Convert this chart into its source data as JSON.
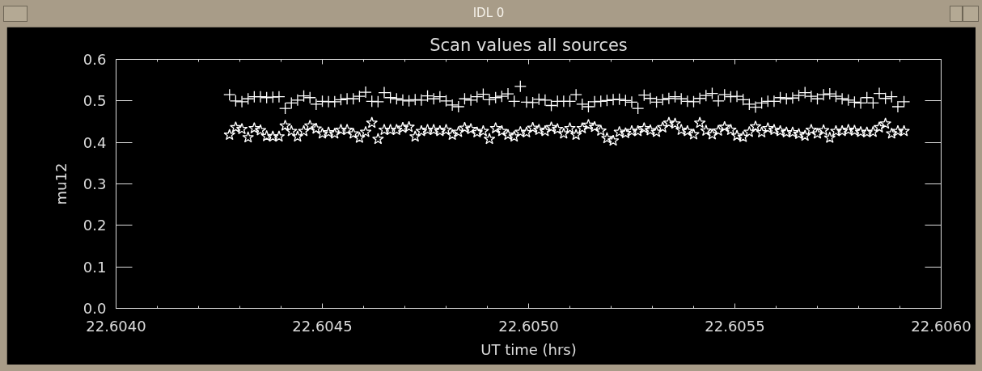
{
  "chart_data": {
    "type": "scatter",
    "title": "Scan values all sources",
    "xlabel": "UT time (hrs)",
    "ylabel": "mu12",
    "annotations": [
      "IDL 0"
    ],
    "xlim": [
      22.604,
      22.606
    ],
    "ylim": [
      0,
      0.6
    ],
    "xticks": [
      {
        "value": 22.604,
        "label": "22.6040"
      },
      22.6045,
      {
        "value": 22.605,
        "label": "22.6050"
      },
      22.6055,
      {
        "value": 22.606,
        "label": "22.6060"
      }
    ],
    "yticks": [
      {
        "value": 0,
        "label": "0.0"
      },
      0.1,
      0.2,
      0.3,
      0.4,
      0.5,
      0.6
    ],
    "x": [
      22.604275,
      22.60429,
      22.604305,
      22.60432,
      22.604335,
      22.60435,
      22.604365,
      22.60438,
      22.604395,
      22.60441,
      22.604425,
      22.60444,
      22.604455,
      22.60447,
      22.604485,
      22.6045,
      22.604515,
      22.60453,
      22.604545,
      22.60456,
      22.604575,
      22.60459,
      22.604605,
      22.60462,
      22.604635,
      22.60465,
      22.604665,
      22.60468,
      22.604695,
      22.60471,
      22.604725,
      22.60474,
      22.604755,
      22.60477,
      22.604785,
      22.6048,
      22.604815,
      22.60483,
      22.604845,
      22.60486,
      22.604875,
      22.60489,
      22.604905,
      22.60492,
      22.604935,
      22.60495,
      22.604965,
      22.60498,
      22.604995,
      22.60501,
      22.605025,
      22.60504,
      22.605055,
      22.60507,
      22.605085,
      22.6051,
      22.605115,
      22.60513,
      22.605145,
      22.60516,
      22.605175,
      22.60519,
      22.605205,
      22.60522,
      22.605235,
      22.60525,
      22.605265,
      22.60528,
      22.605295,
      22.60531,
      22.605325,
      22.60534,
      22.605355,
      22.60537,
      22.605385,
      22.6054,
      22.605415,
      22.60543,
      22.605445,
      22.60546,
      22.605475,
      22.60549,
      22.605505,
      22.60552,
      22.605535,
      22.60555,
      22.605565,
      22.60558,
      22.605595,
      22.60561,
      22.605625,
      22.60564,
      22.605655,
      22.60567,
      22.605685,
      22.6057,
      22.605715,
      22.60573,
      22.605745,
      22.60576,
      22.605775,
      22.60579,
      22.605805,
      22.60582,
      22.605835,
      22.60585,
      22.605865,
      22.60588,
      22.605895,
      22.60591
    ],
    "series": [
      {
        "color": "#ffffff",
        "marker": "cross",
        "values": [
          0.515,
          0.5,
          0.498,
          0.505,
          0.51,
          0.51,
          0.508,
          0.509,
          0.51,
          0.482,
          0.495,
          0.502,
          0.512,
          0.508,
          0.492,
          0.499,
          0.498,
          0.498,
          0.503,
          0.505,
          0.505,
          0.511,
          0.521,
          0.499,
          0.498,
          0.52,
          0.508,
          0.505,
          0.502,
          0.5,
          0.503,
          0.502,
          0.512,
          0.505,
          0.51,
          0.5,
          0.49,
          0.486,
          0.505,
          0.502,
          0.51,
          0.516,
          0.503,
          0.508,
          0.511,
          0.517,
          0.499,
          0.535,
          0.497,
          0.496,
          0.504,
          0.502,
          0.489,
          0.499,
          0.499,
          0.499,
          0.515,
          0.492,
          0.486,
          0.498,
          0.499,
          0.501,
          0.503,
          0.504,
          0.501,
          0.497,
          0.482,
          0.514,
          0.506,
          0.497,
          0.503,
          0.506,
          0.51,
          0.505,
          0.499,
          0.498,
          0.506,
          0.513,
          0.518,
          0.5,
          0.515,
          0.51,
          0.511,
          0.503,
          0.492,
          0.485,
          0.495,
          0.499,
          0.499,
          0.508,
          0.505,
          0.507,
          0.513,
          0.52,
          0.511,
          0.505,
          0.515,
          0.517,
          0.511,
          0.505,
          0.502,
          0.497,
          0.495,
          0.508,
          0.495,
          0.518,
          0.506,
          0.51,
          0.486,
          0.498
        ]
      },
      {
        "color": "#ffffff",
        "marker": "star",
        "values": [
          0.418,
          0.436,
          0.432,
          0.412,
          0.434,
          0.429,
          0.415,
          0.414,
          0.414,
          0.44,
          0.427,
          0.414,
          0.427,
          0.44,
          0.433,
          0.421,
          0.424,
          0.421,
          0.43,
          0.43,
          0.421,
          0.411,
          0.425,
          0.447,
          0.408,
          0.43,
          0.43,
          0.43,
          0.435,
          0.437,
          0.414,
          0.427,
          0.43,
          0.43,
          0.427,
          0.43,
          0.418,
          0.425,
          0.435,
          0.432,
          0.424,
          0.427,
          0.408,
          0.434,
          0.427,
          0.418,
          0.414,
          0.425,
          0.424,
          0.435,
          0.43,
          0.427,
          0.436,
          0.432,
          0.421,
          0.434,
          0.418,
          0.434,
          0.442,
          0.437,
          0.428,
          0.41,
          0.404,
          0.425,
          0.422,
          0.427,
          0.427,
          0.434,
          0.429,
          0.425,
          0.436,
          0.447,
          0.445,
          0.43,
          0.427,
          0.419,
          0.447,
          0.428,
          0.419,
          0.428,
          0.437,
          0.43,
          0.416,
          0.413,
          0.425,
          0.438,
          0.424,
          0.434,
          0.43,
          0.427,
          0.424,
          0.424,
          0.42,
          0.416,
          0.43,
          0.421,
          0.429,
          0.411,
          0.427,
          0.427,
          0.43,
          0.428,
          0.425,
          0.424,
          0.425,
          0.436,
          0.445,
          0.421,
          0.427,
          0.427
        ]
      }
    ]
  }
}
